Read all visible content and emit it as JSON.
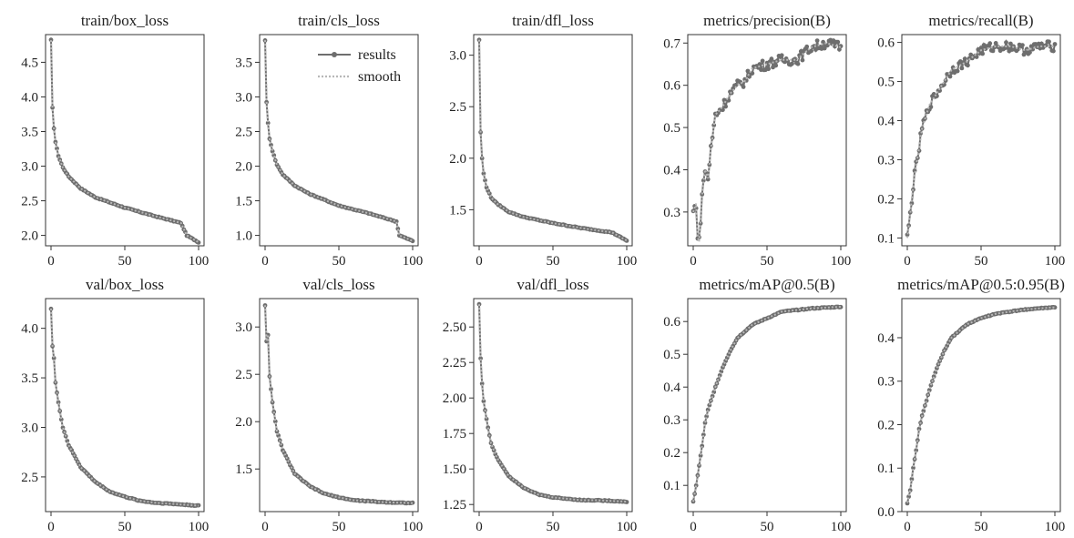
{
  "figure": {
    "legend": {
      "results_label": "results",
      "smooth_label": "smooth",
      "placement": "upper-right of train/cls_loss"
    }
  },
  "colors": {
    "results": "#6e6e6e",
    "smooth": "#b8b8b8",
    "axes": "#333333"
  },
  "chart_data": [
    {
      "type": "line",
      "title": "train/box_loss",
      "xlim": [
        0,
        100
      ],
      "ylim": [
        1.85,
        4.9
      ],
      "xticks": [
        0,
        50,
        100
      ],
      "yticks": [
        2.0,
        2.5,
        3.0,
        3.5,
        4.0,
        4.5
      ],
      "ytick_labels": [
        "2.0",
        "2.5",
        "3.0",
        "3.5",
        "4.0",
        "4.5"
      ],
      "shape": "decay",
      "start": 4.82,
      "mid": 2.4,
      "end": 1.9,
      "points": [
        [
          0,
          4.82
        ],
        [
          1,
          3.84
        ],
        [
          2,
          3.55
        ],
        [
          3,
          3.35
        ],
        [
          5,
          3.15
        ],
        [
          8,
          2.98
        ],
        [
          12,
          2.85
        ],
        [
          20,
          2.68
        ],
        [
          30,
          2.55
        ],
        [
          50,
          2.4
        ],
        [
          70,
          2.28
        ],
        [
          88,
          2.18
        ],
        [
          92,
          2.0
        ],
        [
          100,
          1.9
        ]
      ]
    },
    {
      "type": "line",
      "title": "train/cls_loss",
      "xlim": [
        0,
        100
      ],
      "ylim": [
        0.85,
        3.9
      ],
      "xticks": [
        0,
        50,
        100
      ],
      "yticks": [
        1.0,
        1.5,
        2.0,
        2.5,
        3.0,
        3.5
      ],
      "ytick_labels": [
        "1.0",
        "1.5",
        "2.0",
        "2.5",
        "3.0",
        "3.5"
      ],
      "shape": "decay",
      "start": 3.82,
      "mid": 1.43,
      "end": 0.92,
      "points": [
        [
          0,
          3.82
        ],
        [
          1,
          2.92
        ],
        [
          2,
          2.62
        ],
        [
          3,
          2.4
        ],
        [
          5,
          2.22
        ],
        [
          8,
          2.02
        ],
        [
          12,
          1.88
        ],
        [
          20,
          1.72
        ],
        [
          30,
          1.6
        ],
        [
          50,
          1.43
        ],
        [
          70,
          1.32
        ],
        [
          89,
          1.2
        ],
        [
          91,
          1.0
        ],
        [
          100,
          0.92
        ]
      ]
    },
    {
      "type": "line",
      "title": "train/dfl_loss",
      "xlim": [
        0,
        100
      ],
      "ylim": [
        1.15,
        3.2
      ],
      "xticks": [
        0,
        50,
        100
      ],
      "yticks": [
        1.5,
        2.0,
        2.5,
        3.0
      ],
      "ytick_labels": [
        "1.5",
        "2.0",
        "2.5",
        "3.0"
      ],
      "shape": "decay",
      "start": 3.15,
      "mid": 1.37,
      "end": 1.2,
      "points": [
        [
          0,
          3.15
        ],
        [
          1,
          2.25
        ],
        [
          2,
          2.0
        ],
        [
          3,
          1.85
        ],
        [
          5,
          1.72
        ],
        [
          8,
          1.62
        ],
        [
          12,
          1.56
        ],
        [
          20,
          1.48
        ],
        [
          30,
          1.43
        ],
        [
          50,
          1.37
        ],
        [
          70,
          1.32
        ],
        [
          90,
          1.28
        ],
        [
          100,
          1.2
        ]
      ]
    },
    {
      "type": "line",
      "title": "metrics/precision(B)",
      "xlim": [
        0,
        100
      ],
      "ylim": [
        0.22,
        0.72
      ],
      "xticks": [
        0,
        50,
        100
      ],
      "yticks": [
        0.3,
        0.4,
        0.5,
        0.6,
        0.7
      ],
      "ytick_labels": [
        "0.3",
        "0.4",
        "0.5",
        "0.6",
        "0.7"
      ],
      "shape": "noisy-rise",
      "start": 0.3,
      "mid": 0.65,
      "end": 0.69,
      "points": [
        [
          0,
          0.3
        ],
        [
          2,
          0.32
        ],
        [
          3,
          0.24
        ],
        [
          4,
          0.23
        ],
        [
          6,
          0.34
        ],
        [
          8,
          0.4
        ],
        [
          10,
          0.38
        ],
        [
          12,
          0.45
        ],
        [
          15,
          0.53
        ],
        [
          20,
          0.55
        ],
        [
          25,
          0.58
        ],
        [
          30,
          0.6
        ],
        [
          35,
          0.61
        ],
        [
          40,
          0.64
        ],
        [
          50,
          0.65
        ],
        [
          60,
          0.66
        ],
        [
          70,
          0.66
        ],
        [
          80,
          0.69
        ],
        [
          90,
          0.7
        ],
        [
          100,
          0.69
        ]
      ]
    },
    {
      "type": "line",
      "title": "metrics/recall(B)",
      "xlim": [
        0,
        100
      ],
      "ylim": [
        0.08,
        0.62
      ],
      "xticks": [
        0,
        50,
        100
      ],
      "yticks": [
        0.1,
        0.2,
        0.3,
        0.4,
        0.5,
        0.6
      ],
      "ytick_labels": [
        "0.1",
        "0.2",
        "0.3",
        "0.4",
        "0.5",
        "0.6"
      ],
      "shape": "noisy-rise",
      "start": 0.1,
      "mid": 0.58,
      "end": 0.59,
      "points": [
        [
          0,
          0.1
        ],
        [
          2,
          0.16
        ],
        [
          3,
          0.2
        ],
        [
          5,
          0.26
        ],
        [
          8,
          0.33
        ],
        [
          10,
          0.38
        ],
        [
          15,
          0.44
        ],
        [
          20,
          0.47
        ],
        [
          25,
          0.5
        ],
        [
          30,
          0.53
        ],
        [
          40,
          0.55
        ],
        [
          50,
          0.58
        ],
        [
          60,
          0.59
        ],
        [
          70,
          0.59
        ],
        [
          80,
          0.58
        ],
        [
          90,
          0.59
        ],
        [
          100,
          0.59
        ]
      ]
    },
    {
      "type": "line",
      "title": "val/box_loss",
      "xlim": [
        0,
        100
      ],
      "ylim": [
        2.15,
        4.3
      ],
      "xticks": [
        0,
        50,
        100
      ],
      "yticks": [
        2.5,
        3.0,
        3.5,
        4.0
      ],
      "ytick_labels": [
        "2.5",
        "3.0",
        "3.5",
        "4.0"
      ],
      "shape": "decay",
      "start": 4.2,
      "mid": 2.27,
      "end": 2.21,
      "points": [
        [
          0,
          4.2
        ],
        [
          1,
          3.82
        ],
        [
          2,
          3.7
        ],
        [
          3,
          3.45
        ],
        [
          5,
          3.25
        ],
        [
          8,
          3.0
        ],
        [
          12,
          2.82
        ],
        [
          20,
          2.6
        ],
        [
          30,
          2.45
        ],
        [
          40,
          2.35
        ],
        [
          50,
          2.3
        ],
        [
          60,
          2.26
        ],
        [
          70,
          2.24
        ],
        [
          80,
          2.23
        ],
        [
          100,
          2.21
        ]
      ]
    },
    {
      "type": "line",
      "title": "val/cls_loss",
      "xlim": [
        0,
        100
      ],
      "ylim": [
        1.05,
        3.3
      ],
      "xticks": [
        0,
        50,
        100
      ],
      "yticks": [
        1.5,
        2.0,
        2.5,
        3.0
      ],
      "ytick_labels": [
        "1.5",
        "2.0",
        "2.5",
        "3.0"
      ],
      "shape": "decay",
      "start": 3.23,
      "mid": 1.18,
      "end": 1.14,
      "points": [
        [
          0,
          3.23
        ],
        [
          1,
          2.85
        ],
        [
          2,
          2.92
        ],
        [
          3,
          2.48
        ],
        [
          5,
          2.2
        ],
        [
          8,
          1.9
        ],
        [
          12,
          1.7
        ],
        [
          20,
          1.45
        ],
        [
          30,
          1.32
        ],
        [
          40,
          1.24
        ],
        [
          50,
          1.2
        ],
        [
          60,
          1.17
        ],
        [
          70,
          1.16
        ],
        [
          80,
          1.15
        ],
        [
          100,
          1.14
        ]
      ]
    },
    {
      "type": "line",
      "title": "val/dfl_loss",
      "xlim": [
        0,
        100
      ],
      "ylim": [
        1.2,
        2.7
      ],
      "xticks": [
        0,
        50,
        100
      ],
      "yticks": [
        1.25,
        1.5,
        1.75,
        2.0,
        2.25,
        2.5
      ],
      "ytick_labels": [
        "1.25",
        "1.50",
        "1.75",
        "2.00",
        "2.25",
        "2.50"
      ],
      "shape": "decay",
      "start": 2.66,
      "mid": 1.29,
      "end": 1.27,
      "points": [
        [
          0,
          2.66
        ],
        [
          1,
          2.28
        ],
        [
          2,
          2.1
        ],
        [
          3,
          1.98
        ],
        [
          5,
          1.85
        ],
        [
          8,
          1.68
        ],
        [
          12,
          1.58
        ],
        [
          20,
          1.45
        ],
        [
          30,
          1.37
        ],
        [
          40,
          1.32
        ],
        [
          50,
          1.3
        ],
        [
          60,
          1.29
        ],
        [
          70,
          1.28
        ],
        [
          80,
          1.28
        ],
        [
          100,
          1.27
        ]
      ]
    },
    {
      "type": "line",
      "title": "metrics/mAP@0.5(B)",
      "xlim": [
        0,
        100
      ],
      "ylim": [
        0.02,
        0.67
      ],
      "xticks": [
        0,
        50,
        100
      ],
      "yticks": [
        0.1,
        0.2,
        0.3,
        0.4,
        0.5,
        0.6
      ],
      "ytick_labels": [
        "0.1",
        "0.2",
        "0.3",
        "0.4",
        "0.5",
        "0.6"
      ],
      "shape": "smooth-rise",
      "start": 0.05,
      "mid": 0.61,
      "end": 0.64,
      "points": [
        [
          0,
          0.05
        ],
        [
          2,
          0.1
        ],
        [
          4,
          0.16
        ],
        [
          6,
          0.22
        ],
        [
          8,
          0.29
        ],
        [
          10,
          0.33
        ],
        [
          15,
          0.4
        ],
        [
          20,
          0.46
        ],
        [
          25,
          0.51
        ],
        [
          30,
          0.55
        ],
        [
          40,
          0.59
        ],
        [
          50,
          0.61
        ],
        [
          60,
          0.63
        ],
        [
          70,
          0.635
        ],
        [
          80,
          0.64
        ],
        [
          100,
          0.645
        ]
      ]
    },
    {
      "type": "line",
      "title": "metrics/mAP@0.5:0.95(B)",
      "xlim": [
        0,
        100
      ],
      "ylim": [
        0.0,
        0.49
      ],
      "xticks": [
        0,
        50,
        100
      ],
      "yticks": [
        0.0,
        0.1,
        0.2,
        0.3,
        0.4
      ],
      "ytick_labels": [
        "0.0",
        "0.1",
        "0.2",
        "0.3",
        "0.4"
      ],
      "shape": "smooth-rise",
      "start": 0.02,
      "mid": 0.44,
      "end": 0.47,
      "points": [
        [
          0,
          0.02
        ],
        [
          2,
          0.05
        ],
        [
          4,
          0.1
        ],
        [
          6,
          0.14
        ],
        [
          8,
          0.19
        ],
        [
          10,
          0.22
        ],
        [
          15,
          0.28
        ],
        [
          20,
          0.33
        ],
        [
          25,
          0.37
        ],
        [
          30,
          0.4
        ],
        [
          40,
          0.43
        ],
        [
          50,
          0.445
        ],
        [
          60,
          0.455
        ],
        [
          70,
          0.46
        ],
        [
          80,
          0.465
        ],
        [
          100,
          0.47
        ]
      ]
    }
  ]
}
